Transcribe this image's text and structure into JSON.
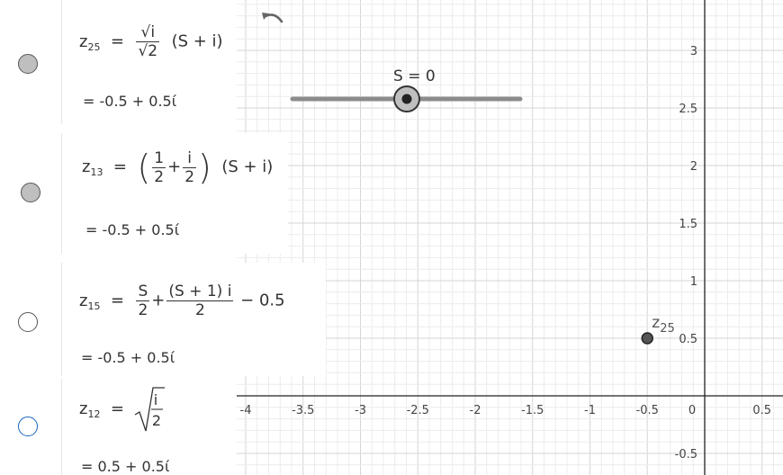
{
  "graphics": {
    "slider": {
      "label": "S = 0",
      "value": 0,
      "min": -5,
      "max": 5
    },
    "point": {
      "label": "z25",
      "x": -0.5,
      "y": 0.5
    },
    "x_ticks": [
      "-4",
      "-3.5",
      "-3",
      "-2.5",
      "-2",
      "-1.5",
      "-1",
      "-0.5",
      "0",
      "0.5"
    ],
    "y_ticks": [
      "3",
      "2.5",
      "2",
      "1.5",
      "1",
      "0.5",
      "-0.5"
    ]
  },
  "algebra": [
    {
      "name": "z",
      "sub": "25",
      "value": "= -0.5 + 0.5ί",
      "visible": true,
      "color": "#bfbfbf"
    },
    {
      "name": "z",
      "sub": "13",
      "value": "= -0.5 + 0.5ί",
      "visible": true,
      "color": "#bfbfbf"
    },
    {
      "name": "z",
      "sub": "15",
      "value": "= -0.5 + 0.5ί",
      "visible": false,
      "color": "#555555"
    },
    {
      "name": "z",
      "sub": "12",
      "value": "= 0.5 + 0.5ί",
      "visible": false,
      "color": "#1565c0"
    }
  ]
}
